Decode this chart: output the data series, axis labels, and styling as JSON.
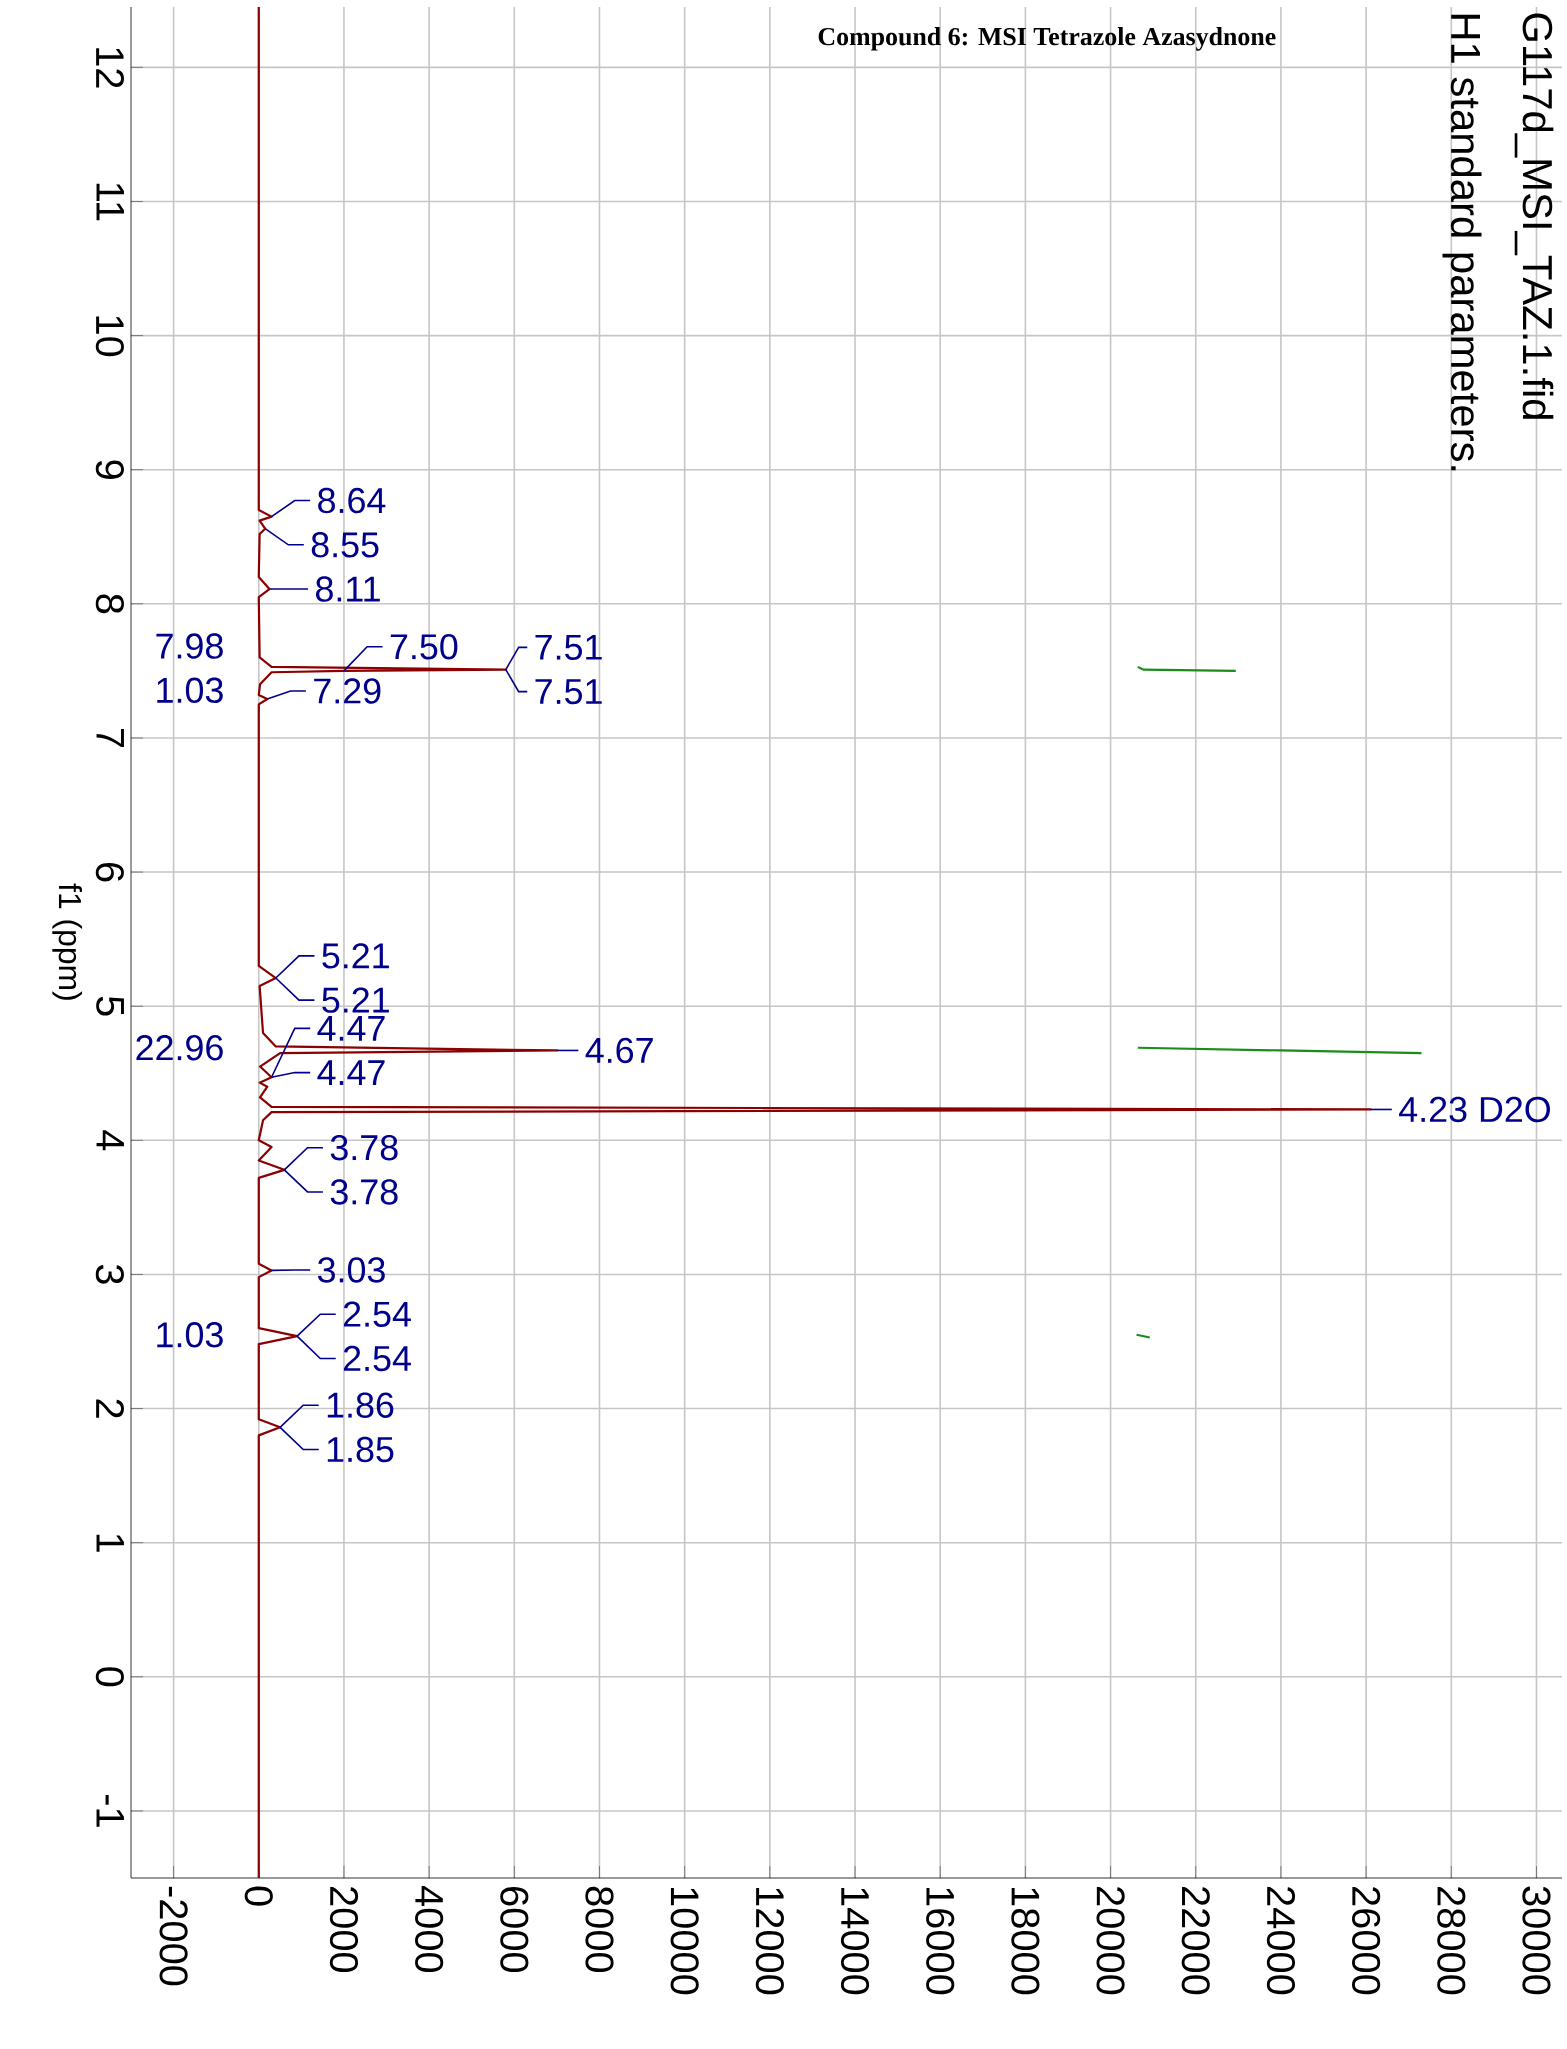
{
  "chart_data": {
    "type": "line",
    "title": "Compound 6: MSI Tetrazole Azasydnone",
    "ylabel": "f1 (ppm)",
    "xlim": [
      -3000,
      30600
    ],
    "ylim": [
      -1.5,
      12.45
    ],
    "xticks": [
      -2000,
      0,
      2000,
      4000,
      6000,
      8000,
      10000,
      12000,
      14000,
      16000,
      18000,
      20000,
      22000,
      24000,
      26000,
      28000,
      30000
    ],
    "yticks": [
      -1,
      0,
      1,
      2,
      3,
      4,
      5,
      6,
      7,
      8,
      9,
      10,
      11,
      12
    ],
    "grid": true,
    "marker": "none",
    "line_style": "solid",
    "series": [
      {
        "color": "#8b0000",
        "x": [
          0,
          0,
          300,
          20,
          150,
          20,
          0,
          250,
          0,
          20,
          300,
          5800,
          2000,
          300,
          30,
          0,
          200,
          0,
          0,
          400,
          20,
          100,
          400,
          7000,
          500,
          30,
          300,
          20,
          200,
          30,
          300,
          26100,
          300,
          100,
          0,
          300,
          0,
          600,
          0,
          0,
          300,
          0,
          0,
          900,
          0,
          0,
          500,
          0,
          0
        ],
        "values": [
          12.45,
          8.7,
          8.65,
          8.62,
          8.56,
          8.52,
          8.2,
          8.11,
          8.05,
          7.6,
          7.53,
          7.51,
          7.5,
          7.49,
          7.4,
          7.32,
          7.29,
          7.25,
          5.3,
          5.21,
          5.15,
          4.8,
          4.7,
          4.67,
          4.65,
          4.55,
          4.47,
          4.43,
          4.4,
          4.32,
          4.25,
          4.23,
          4.21,
          4.15,
          4.0,
          3.95,
          3.85,
          3.78,
          3.72,
          3.08,
          3.03,
          2.98,
          2.6,
          2.54,
          2.48,
          1.92,
          1.86,
          1.8,
          -1.5
        ]
      },
      {
        "color": "#1a8c1a",
        "x": [
          20640,
          20760
        ],
        "values": [
          7.53,
          7.51
        ]
      },
      {
        "color": "#1a8c1a",
        "x": [
          20760,
          22940
        ],
        "values": [
          7.51,
          7.5
        ]
      },
      {
        "color": "#1a8c1a",
        "x": [
          20640,
          24000,
          27300
        ],
        "values": [
          4.69,
          4.67,
          4.65
        ]
      },
      {
        "color": "#1a8c1a",
        "x": [
          20610,
          20920
        ],
        "values": [
          2.55,
          2.53
        ]
      }
    ],
    "annotations": [
      "G117d_MSI_TAZ.1.fid",
      "H1 standard parameters.",
      "7.98",
      "1.03",
      "22.96",
      "1.03",
      {
        "text": "8.64",
        "x": 300,
        "y": 8.65
      },
      {
        "text": "8.55",
        "x": 150,
        "y": 8.56
      },
      {
        "text": "8.11",
        "x": 250,
        "y": 8.11
      },
      {
        "text": "7.51",
        "x": 5800,
        "y": 7.51
      },
      {
        "text": "7.51",
        "x": 5800,
        "y": 7.51
      },
      {
        "text": "7.50",
        "x": 2000,
        "y": 7.5
      },
      {
        "text": "7.29",
        "x": 200,
        "y": 7.29
      },
      {
        "text": "5.21",
        "x": 400,
        "y": 5.21
      },
      {
        "text": "5.21",
        "x": 400,
        "y": 5.21
      },
      {
        "text": "4.67",
        "x": 7000,
        "y": 4.67
      },
      {
        "text": "4.47",
        "x": 300,
        "y": 4.47
      },
      {
        "text": "4.47",
        "x": 300,
        "y": 4.47
      },
      {
        "text": "4.23 D2O",
        "x": 26100,
        "y": 4.23
      },
      {
        "text": "3.78",
        "x": 600,
        "y": 3.78
      },
      {
        "text": "3.78",
        "x": 600,
        "y": 3.78
      },
      {
        "text": "3.03",
        "x": 300,
        "y": 3.03
      },
      {
        "text": "2.54",
        "x": 900,
        "y": 2.54
      },
      {
        "text": "2.54",
        "x": 900,
        "y": 2.54
      },
      {
        "text": "1.86",
        "x": 500,
        "y": 1.86
      },
      {
        "text": "1.85",
        "x": 500,
        "y": 1.86
      }
    ]
  }
}
